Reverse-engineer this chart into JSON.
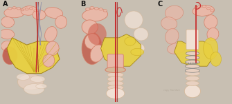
{
  "bg_outer": "#c8bfb2",
  "bg_panel": "#e8ddd2",
  "label_color": "#111111",
  "label_fontsize": 7,
  "labels": [
    "A",
    "B",
    "C"
  ],
  "colon_pink": "#e8b8a8",
  "colon_salmon": "#d4826a",
  "colon_red": "#c05040",
  "mesentery_yellow": "#e8d040",
  "mesentery_gold": "#c8a820",
  "mesentery_edge": "#a08010",
  "vessel_red": "#c83030",
  "vessel_dark": "#902020",
  "tissue_tan": "#d4b89a",
  "tissue_light": "#e8d0c0",
  "tissue_pale": "#f0e0d4",
  "blue_gray": "#9090a8",
  "panel_border": "#888880"
}
